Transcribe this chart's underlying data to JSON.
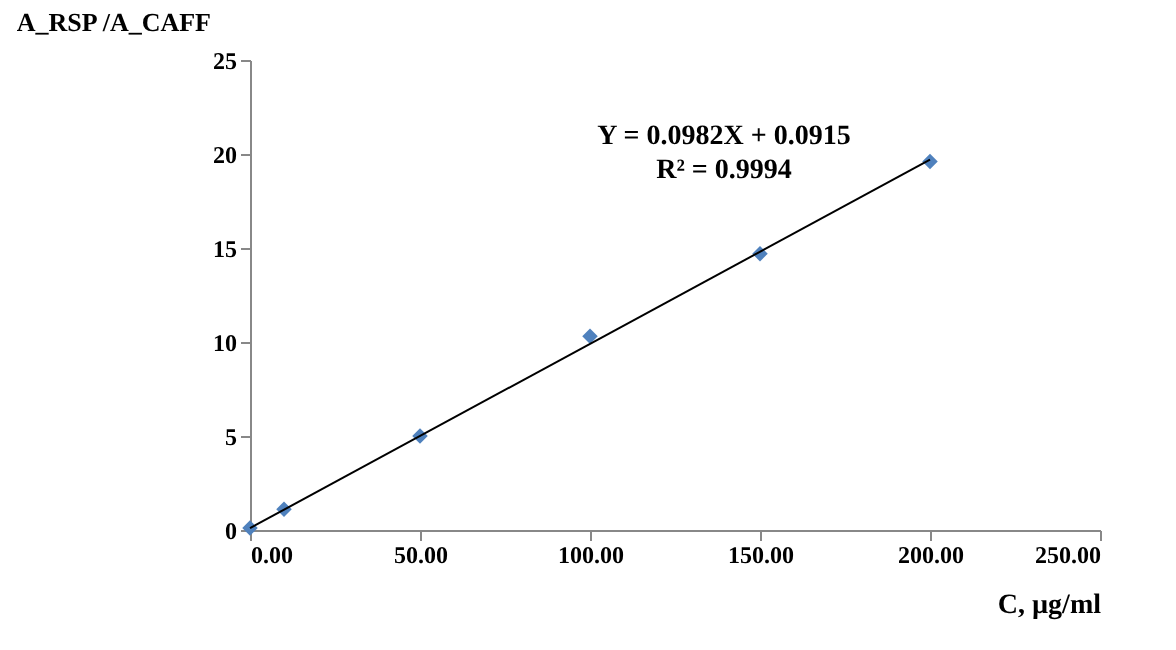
{
  "chart_data": {
    "type": "scatter",
    "xlabel": "C, µg/ml",
    "ylabel": "A_RSP /A_CAFF",
    "x": [
      0,
      10,
      50,
      100,
      150,
      200
    ],
    "series": [
      {
        "color": "#4f81bd",
        "marker": "diamond",
        "values": [
          0.1,
          1.1,
          5.0,
          10.3,
          14.7,
          19.6
        ]
      },
      {
        "type": "line",
        "color": "#000000",
        "marker": "none",
        "x": [
          0,
          200
        ],
        "values": [
          0.1,
          19.7
        ]
      }
    ],
    "annotations": [
      "Y = 0.0982X + 0.0915",
      "R² = 0.9994"
    ],
    "xlim": [
      0,
      250
    ],
    "xticks": [
      {
        "value": 0,
        "label": "0.00"
      },
      {
        "value": 50,
        "label": "50.00"
      },
      {
        "value": 100,
        "label": "100.00"
      },
      {
        "value": 150,
        "label": "150.00"
      },
      {
        "value": 200,
        "label": "200.00"
      },
      {
        "value": 250,
        "label": "250.00"
      }
    ],
    "ylim": [
      0,
      25
    ],
    "yticks": [
      0,
      5,
      10,
      15,
      20,
      25
    ],
    "grid": false
  }
}
